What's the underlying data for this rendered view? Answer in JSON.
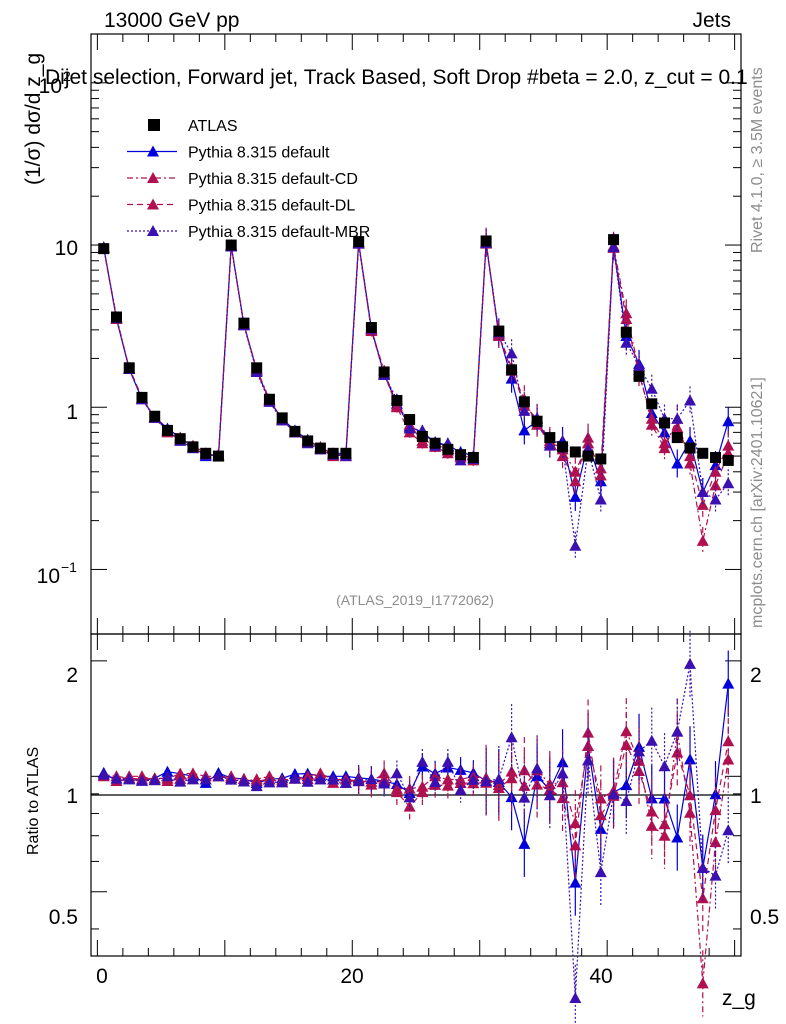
{
  "header": {
    "energy_label": "13000 GeV pp",
    "category_label": "Jets",
    "plot_title": "Dijet selection, Forward jet, Track Based, Soft Drop #beta = 2.0, z_cut = 0.1",
    "analysis_id": "(ATLAS_2019_I1772062)",
    "rivet_label": "Rivet 4.1.0, ≥ 3.5M events",
    "source_label": "mcplots.cern.ch [arXiv:2401.10621]"
  },
  "axes": {
    "y_label_main": "(1/σ) dσ/d z_g",
    "y_label_ratio": "Ratio to ATLAS",
    "x_label": "z_g"
  },
  "legend": [
    {
      "label": "ATLAS",
      "color": "#000000",
      "marker": "square",
      "dash": "none"
    },
    {
      "label": "Pythia 8.315 default",
      "color": "#0000dd",
      "marker": "triangle",
      "dash": "solid"
    },
    {
      "label": "Pythia 8.315 default-CD",
      "color": "#b0104f",
      "marker": "triangle",
      "dash": "dashdot"
    },
    {
      "label": "Pythia 8.315 default-DL",
      "color": "#b0104f",
      "marker": "triangle",
      "dash": "dashed"
    },
    {
      "label": "Pythia 8.315 default-MBR",
      "color": "#3a10b0",
      "marker": "triangle",
      "dash": "dotted"
    }
  ],
  "chart_data": {
    "type": "scatter",
    "title": "Dijet selection, Forward jet, Track Based, Soft Drop #beta = 2.0, z_cut = 0.1",
    "xlabel": "z_g",
    "ylabel": "(1/σ) dσ/d z_g",
    "xlim": [
      -0.5,
      50.5
    ],
    "ylim": [
      0.04,
      200
    ],
    "yscale": "log",
    "ratio_ylim": [
      0.34,
      2.35
    ],
    "x_ticks": [
      "0",
      "20",
      "40"
    ],
    "y_ticks_main": [
      "10^-1",
      "1",
      "10",
      "10^2"
    ],
    "y_ticks_ratio": [
      "0.5",
      "1",
      "2"
    ],
    "x": [
      0.5,
      1.5,
      2.5,
      3.5,
      4.5,
      5.5,
      6.5,
      7.5,
      8.5,
      9.5,
      10.5,
      11.5,
      12.5,
      13.5,
      14.5,
      15.5,
      16.5,
      17.5,
      18.5,
      19.5,
      20.5,
      21.5,
      22.5,
      23.5,
      24.5,
      25.5,
      26.5,
      27.5,
      28.5,
      29.5,
      30.5,
      31.5,
      32.5,
      33.5,
      34.5,
      35.5,
      36.5,
      37.5,
      38.5,
      39.5,
      40.5,
      41.5,
      42.5,
      43.5,
      44.5,
      45.5,
      46.5,
      47.5,
      48.5,
      49.5
    ],
    "series": [
      {
        "name": "ATLAS",
        "values": [
          9.5,
          3.6,
          1.75,
          1.15,
          0.88,
          0.72,
          0.64,
          0.57,
          0.52,
          0.5,
          10,
          3.3,
          1.75,
          1.12,
          0.86,
          0.71,
          0.62,
          0.56,
          0.52,
          0.52,
          10.5,
          3.1,
          1.65,
          1.1,
          0.84,
          0.66,
          0.6,
          0.55,
          0.51,
          0.49,
          10.6,
          2.95,
          1.7,
          1.08,
          0.82,
          0.65,
          0.57,
          0.53,
          0.5,
          0.48,
          10.8,
          2.9,
          1.55,
          1.05,
          0.8,
          0.65,
          0.56,
          0.52,
          0.49,
          0.47
        ]
      },
      {
        "name": "Pythia 8.315 default",
        "values": [
          9.7,
          3.5,
          1.72,
          1.12,
          0.87,
          0.74,
          0.65,
          0.57,
          0.5,
          0.51,
          9.9,
          3.25,
          1.68,
          1.1,
          0.85,
          0.72,
          0.63,
          0.56,
          0.52,
          0.52,
          10.4,
          3.05,
          1.6,
          1.05,
          0.76,
          0.7,
          0.61,
          0.58,
          0.53,
          0.5,
          10.3,
          2.85,
          1.5,
          0.72,
          0.82,
          0.6,
          0.62,
          0.28,
          0.6,
          0.35,
          9.8,
          2.75,
          1.85,
          0.92,
          0.7,
          0.45,
          0.62,
          0.3,
          0.44,
          0.82
        ]
      },
      {
        "name": "Pythia 8.315 default-CD",
        "values": [
          9.6,
          3.6,
          1.73,
          1.13,
          0.87,
          0.71,
          0.65,
          0.58,
          0.52,
          0.5,
          10,
          3.2,
          1.72,
          1.12,
          0.84,
          0.7,
          0.62,
          0.57,
          0.51,
          0.51,
          10.2,
          3,
          1.68,
          1.02,
          0.78,
          0.62,
          0.6,
          0.54,
          0.5,
          0.49,
          10.5,
          2.8,
          1.75,
          1.02,
          0.85,
          0.62,
          0.55,
          0.4,
          0.6,
          0.42,
          9.9,
          3.8,
          1.7,
          0.78,
          0.56,
          0.85,
          0.45,
          0.15,
          0.33,
          0.52
        ]
      },
      {
        "name": "Pythia 8.315 default-DL",
        "values": [
          9.5,
          3.5,
          1.75,
          1.15,
          0.86,
          0.7,
          0.63,
          0.56,
          0.51,
          0.5,
          9.9,
          3.25,
          1.7,
          1.1,
          0.83,
          0.7,
          0.61,
          0.55,
          0.5,
          0.5,
          10.3,
          2.95,
          1.62,
          1.0,
          0.7,
          0.6,
          0.57,
          0.52,
          0.49,
          0.47,
          10.2,
          2.75,
          1.68,
          1.12,
          0.78,
          0.6,
          0.5,
          0.35,
          0.65,
          0.38,
          9.6,
          3.5,
          1.6,
          0.85,
          0.6,
          0.75,
          0.5,
          0.25,
          0.4,
          0.58
        ]
      },
      {
        "name": "Pythia 8.315 default-MBR",
        "values": [
          9.6,
          3.55,
          1.72,
          1.12,
          0.86,
          0.72,
          0.62,
          0.56,
          0.51,
          0.5,
          9.8,
          3.2,
          1.65,
          1.08,
          0.83,
          0.7,
          0.6,
          0.55,
          0.51,
          0.5,
          10.2,
          3.05,
          1.58,
          1.12,
          0.74,
          0.72,
          0.58,
          0.6,
          0.47,
          0.48,
          10.3,
          2.9,
          2.15,
          0.95,
          0.86,
          0.58,
          0.58,
          0.14,
          0.55,
          0.27,
          9.7,
          2.5,
          1.8,
          1.3,
          0.85,
          0.85,
          1.1,
          0.3,
          0.27,
          0.34
        ]
      }
    ]
  }
}
